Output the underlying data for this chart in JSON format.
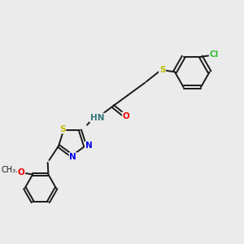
{
  "bg_color": "#ebebeb",
  "bond_color": "#1a1a1a",
  "atom_colors": {
    "N": "#0000ee",
    "O": "#ee0000",
    "S": "#bbbb00",
    "Cl": "#33bb33",
    "H": "#337777",
    "C": "#1a1a1a"
  },
  "figsize": [
    3.0,
    3.0
  ],
  "dpi": 100,
  "lw": 1.4,
  "fs": 7.5
}
